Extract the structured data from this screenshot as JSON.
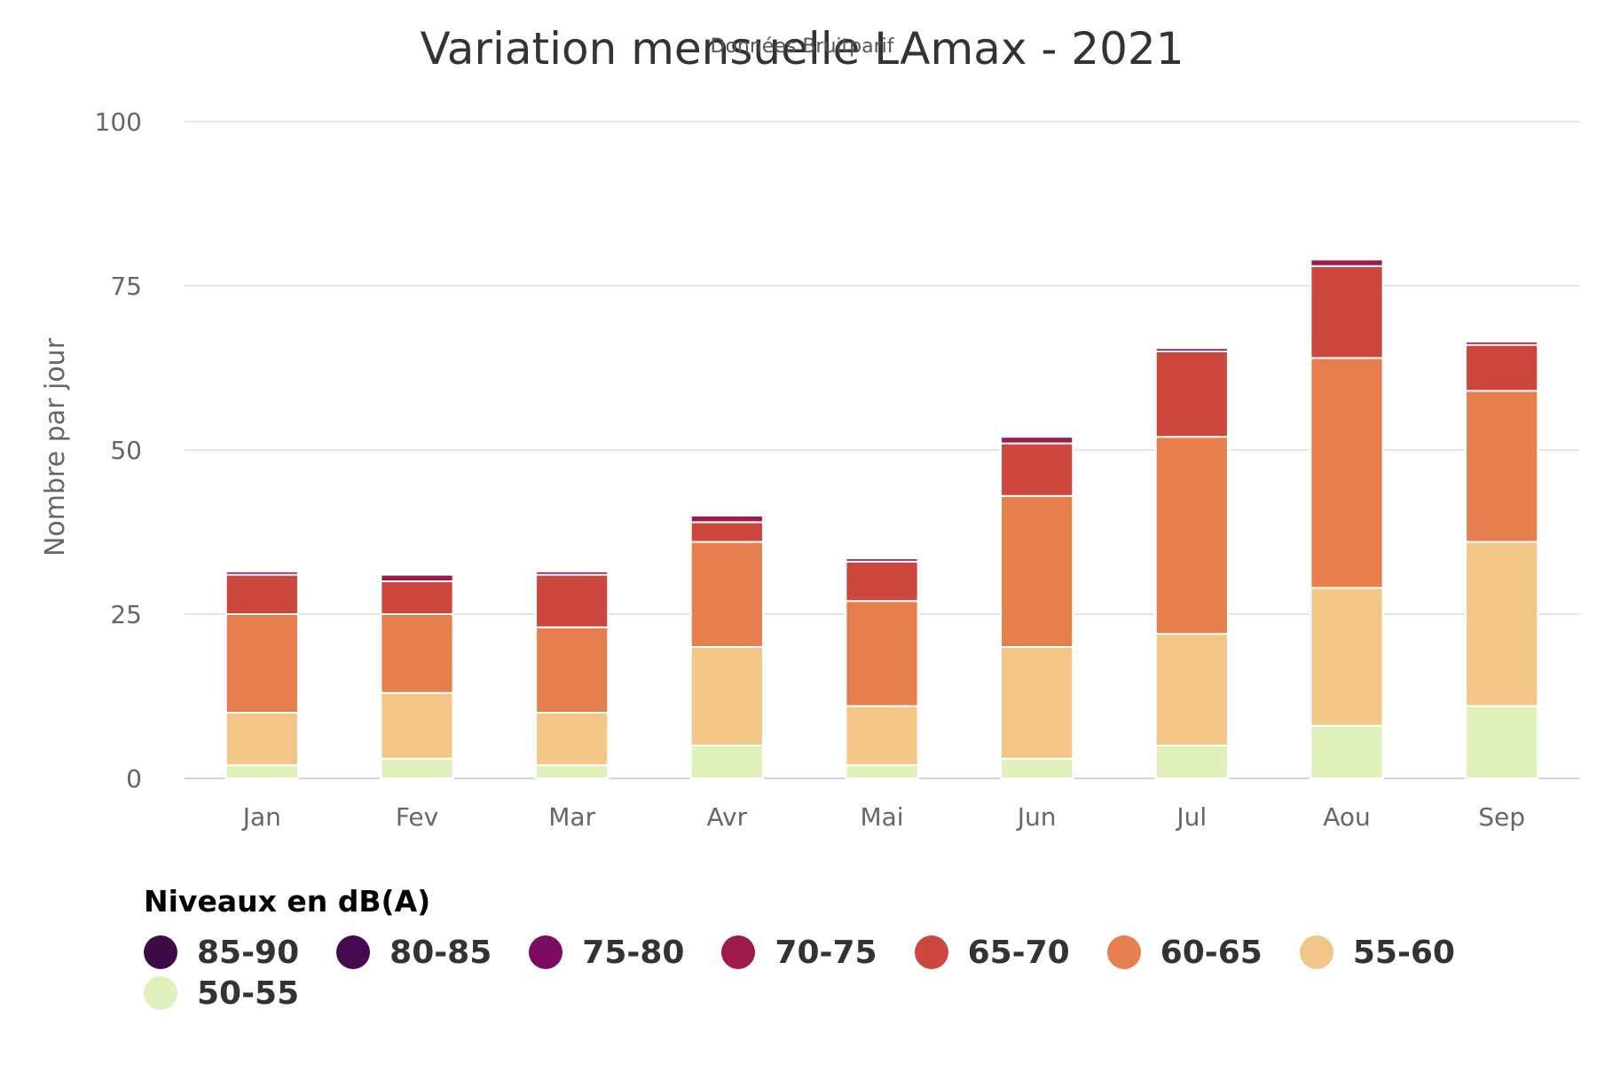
{
  "chart_data": {
    "type": "bar",
    "stacked": true,
    "title": "Variation mensuelle LAmax - 2021",
    "subtitle": "Données Bruitparif",
    "xlabel": "",
    "ylabel": "Nombre par jour",
    "ylim": [
      0,
      100
    ],
    "yticks": [
      0,
      25,
      50,
      75,
      100
    ],
    "grid": true,
    "categories": [
      "Jan",
      "Fev",
      "Mar",
      "Avr",
      "Mai",
      "Jun",
      "Jul",
      "Aou",
      "Sep"
    ],
    "legend_title": "Niveaux en dB(A)",
    "legend_position": "bottom-left",
    "series": [
      {
        "name": "85-90",
        "color": "#3d0c47",
        "values": [
          0,
          0,
          0,
          0,
          0,
          0,
          0,
          0,
          0
        ]
      },
      {
        "name": "80-85",
        "color": "#450a4f",
        "values": [
          0,
          0,
          0,
          0,
          0,
          0,
          0,
          0,
          0
        ]
      },
      {
        "name": "75-80",
        "color": "#7b0c62",
        "values": [
          0,
          0,
          0,
          0,
          0,
          0,
          0,
          0,
          0
        ]
      },
      {
        "name": "70-75",
        "color": "#9e1a4d",
        "values": [
          0.5,
          1,
          0.5,
          1,
          0.5,
          1,
          0.5,
          1,
          0.5
        ]
      },
      {
        "name": "65-70",
        "color": "#cc473d",
        "values": [
          6,
          5,
          8,
          3,
          6,
          8,
          13,
          14,
          7
        ]
      },
      {
        "name": "60-65",
        "color": "#e67f4d",
        "values": [
          15,
          12,
          13,
          16,
          16,
          23,
          30,
          35,
          23
        ]
      },
      {
        "name": "55-60",
        "color": "#f2c687",
        "values": [
          8,
          10,
          8,
          15,
          9,
          17,
          17,
          21,
          25
        ]
      },
      {
        "name": "50-55",
        "color": "#e0f0bd",
        "values": [
          2,
          3,
          2,
          5,
          2,
          3,
          5,
          8,
          11
        ]
      }
    ]
  }
}
